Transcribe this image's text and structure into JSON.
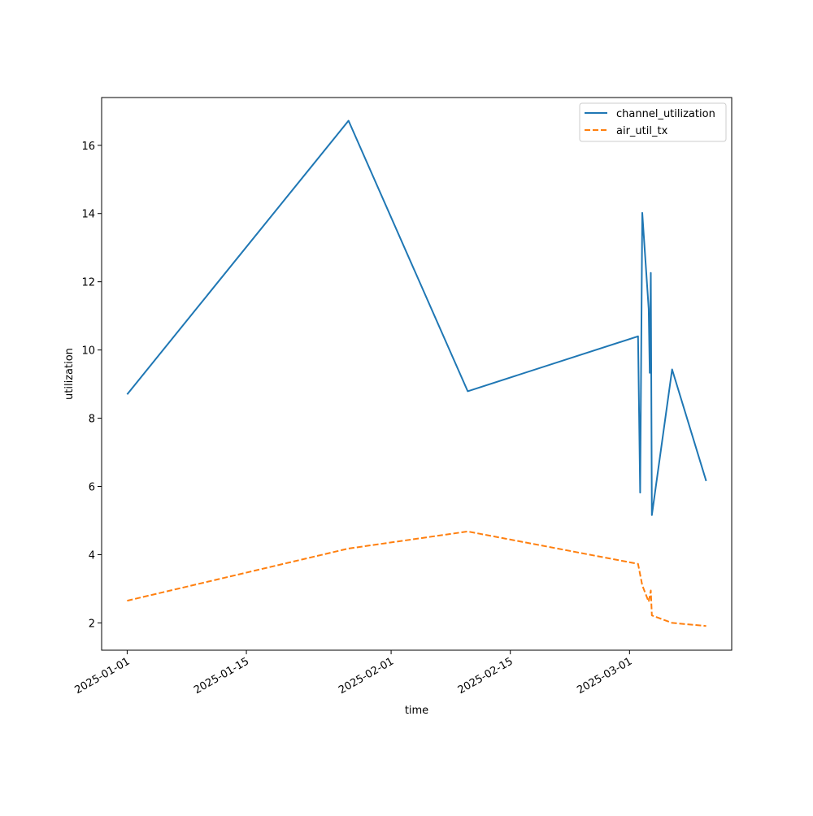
{
  "chart_data": {
    "type": "line",
    "title": "",
    "xlabel": "time",
    "ylabel": "utilization",
    "x_scale": "date",
    "xlim": [
      "2024-12-29",
      "2025-03-13"
    ],
    "ylim": [
      1.2,
      17.4
    ],
    "x_ticks": [
      "2025-01-01",
      "2025-01-15",
      "2025-02-01",
      "2025-02-15",
      "2025-03-01"
    ],
    "y_ticks": [
      2,
      4,
      6,
      8,
      10,
      12,
      14,
      16
    ],
    "grid": false,
    "legend_position": "top-right",
    "series": [
      {
        "name": "channel_utilization",
        "color": "#1f77b4",
        "style": "solid",
        "points": [
          {
            "x": "2025-01-01",
            "y": 8.7
          },
          {
            "x": "2025-01-27",
            "y": 16.72
          },
          {
            "x": "2025-02-10",
            "y": 8.79
          },
          {
            "x": "2025-03-02",
            "y": 10.4
          },
          {
            "x": "2025-03-02T06:00",
            "y": 5.82
          },
          {
            "x": "2025-03-02T12:00",
            "y": 14.02
          },
          {
            "x": "2025-03-03T06:00",
            "y": 11.2
          },
          {
            "x": "2025-03-03T09:00",
            "y": 9.33
          },
          {
            "x": "2025-03-03T12:00",
            "y": 12.26
          },
          {
            "x": "2025-03-03T15:00",
            "y": 5.16
          },
          {
            "x": "2025-03-06",
            "y": 9.43
          },
          {
            "x": "2025-03-10",
            "y": 6.16
          }
        ]
      },
      {
        "name": "air_util_tx",
        "color": "#ff7f0e",
        "style": "dashed",
        "points": [
          {
            "x": "2025-01-01",
            "y": 2.65
          },
          {
            "x": "2025-01-27",
            "y": 4.18
          },
          {
            "x": "2025-02-10",
            "y": 4.68
          },
          {
            "x": "2025-03-02",
            "y": 3.73
          },
          {
            "x": "2025-03-02T12:00",
            "y": 3.1
          },
          {
            "x": "2025-03-03T06:00",
            "y": 2.62
          },
          {
            "x": "2025-03-03T12:00",
            "y": 2.95
          },
          {
            "x": "2025-03-03T15:00",
            "y": 2.22
          },
          {
            "x": "2025-03-06",
            "y": 2.0
          },
          {
            "x": "2025-03-10",
            "y": 1.91
          }
        ]
      }
    ]
  }
}
